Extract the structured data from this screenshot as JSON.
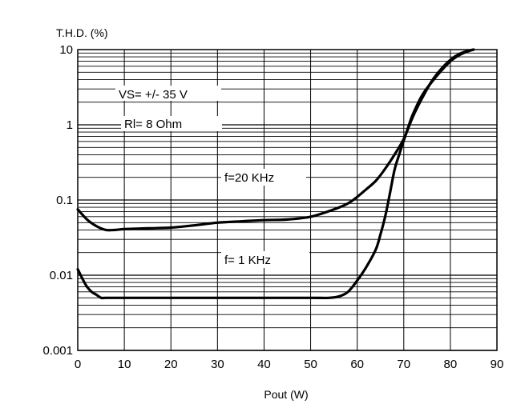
{
  "chart_data": {
    "type": "line",
    "title": "",
    "ylabel": "T.H.D.  (%)",
    "xlabel": "Pout  (W)",
    "y_scale": "log",
    "xlim": [
      0,
      90
    ],
    "ylim": [
      0.001,
      10
    ],
    "x_ticks": [
      0,
      10,
      20,
      30,
      40,
      50,
      60,
      70,
      80,
      90
    ],
    "x_tick_labels": [
      "0",
      "10",
      "20",
      "30",
      "40",
      "50",
      "60",
      "70",
      "80",
      "90"
    ],
    "y_ticks": [
      0.001,
      0.01,
      0.1,
      1,
      10
    ],
    "y_tick_labels": [
      "0.001",
      "0.01",
      "0.1",
      "1",
      "10"
    ],
    "grid": true,
    "annotations": [
      "VS=  +/- 35 V",
      "Rl= 8 Ohm"
    ],
    "series": [
      {
        "name": "f=20 KHz",
        "x": [
          0,
          2,
          4,
          6,
          8,
          10,
          15,
          20,
          25,
          30,
          35,
          40,
          45,
          50,
          55,
          58,
          60,
          62,
          64,
          66,
          68,
          70,
          72,
          74,
          76,
          78,
          80,
          82,
          84,
          85
        ],
        "y": [
          0.075,
          0.055,
          0.045,
          0.04,
          0.04,
          0.041,
          0.042,
          0.043,
          0.046,
          0.05,
          0.052,
          0.054,
          0.055,
          0.06,
          0.075,
          0.09,
          0.11,
          0.14,
          0.18,
          0.26,
          0.4,
          0.65,
          1.3,
          2.3,
          3.8,
          5.5,
          7.3,
          8.8,
          9.7,
          10
        ]
      },
      {
        "name": "f= 1 KHz",
        "x": [
          0,
          1,
          2,
          3,
          4,
          5,
          6,
          10,
          20,
          30,
          40,
          50,
          54,
          56,
          58,
          60,
          62,
          64,
          65,
          66,
          67,
          68,
          69,
          70,
          71,
          72,
          74,
          76,
          78,
          80,
          82,
          84,
          85
        ],
        "y": [
          0.012,
          0.009,
          0.007,
          0.006,
          0.0055,
          0.005,
          0.005,
          0.005,
          0.005,
          0.005,
          0.005,
          0.005,
          0.005,
          0.0052,
          0.006,
          0.0085,
          0.013,
          0.022,
          0.035,
          0.06,
          0.12,
          0.25,
          0.4,
          0.62,
          0.95,
          1.4,
          2.5,
          3.7,
          5.2,
          7.0,
          8.5,
          9.6,
          10
        ]
      }
    ]
  }
}
